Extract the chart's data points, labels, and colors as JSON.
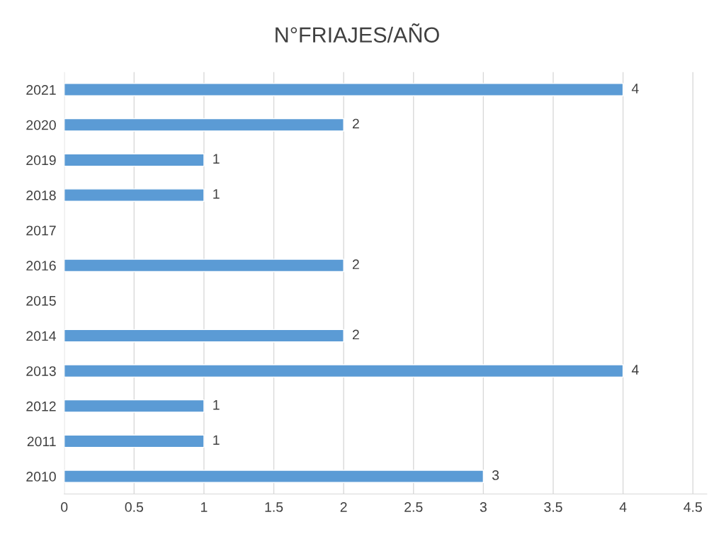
{
  "chart_data": {
    "type": "bar",
    "orientation": "horizontal",
    "title": "N°FRIAJES/AÑO",
    "categories": [
      "2021",
      "2020",
      "2019",
      "2018",
      "2017",
      "2016",
      "2015",
      "2014",
      "2013",
      "2012",
      "2011",
      "2010"
    ],
    "values": [
      4,
      2,
      1,
      1,
      null,
      2,
      null,
      2,
      4,
      1,
      1,
      3
    ],
    "color": "#5b9bd5",
    "xlim": [
      0,
      4.6
    ],
    "xticks": [
      0,
      0.5,
      1,
      1.5,
      2,
      2.5,
      3,
      3.5,
      4,
      4.5
    ],
    "grid": "x",
    "data_labels": true
  }
}
